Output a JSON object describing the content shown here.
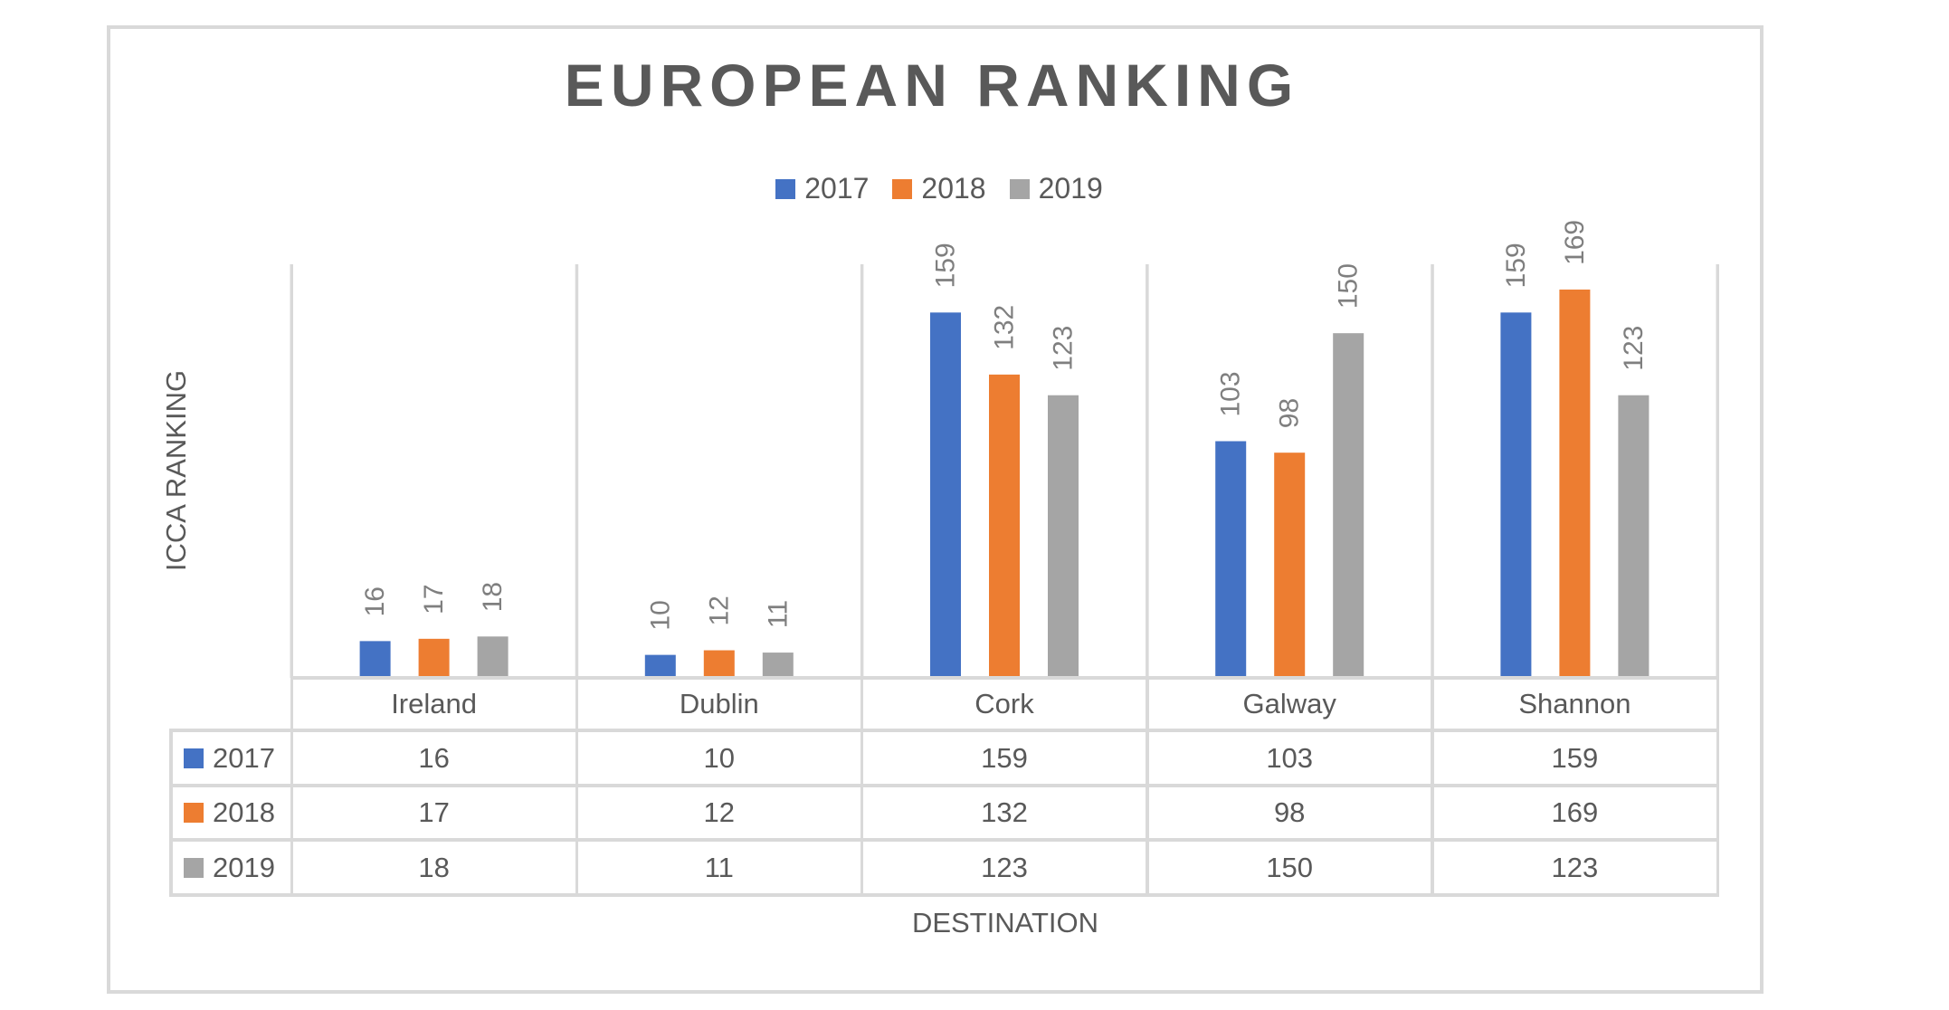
{
  "chart_data": {
    "type": "bar",
    "title": "EUROPEAN RANKING",
    "xlabel": "DESTINATION",
    "ylabel": "ICCA RANKING",
    "categories": [
      "Ireland",
      "Dublin",
      "Cork",
      "Galway",
      "Shannon"
    ],
    "series": [
      {
        "name": "2017",
        "color": "#4472C4",
        "values": [
          16,
          10,
          159,
          103,
          159
        ]
      },
      {
        "name": "2018",
        "color": "#ED7D31",
        "values": [
          17,
          12,
          132,
          98,
          169
        ]
      },
      {
        "name": "2019",
        "color": "#A5A5A5",
        "values": [
          18,
          11,
          123,
          150,
          123
        ]
      }
    ],
    "ylim": [
      0,
      180
    ],
    "legend_position": "top",
    "data_labels": true,
    "data_table": true,
    "grid": "vertical category separators"
  },
  "colors": {
    "text": "#595959",
    "data_label": "#7F7F7F",
    "border": "#D9D9D9"
  }
}
